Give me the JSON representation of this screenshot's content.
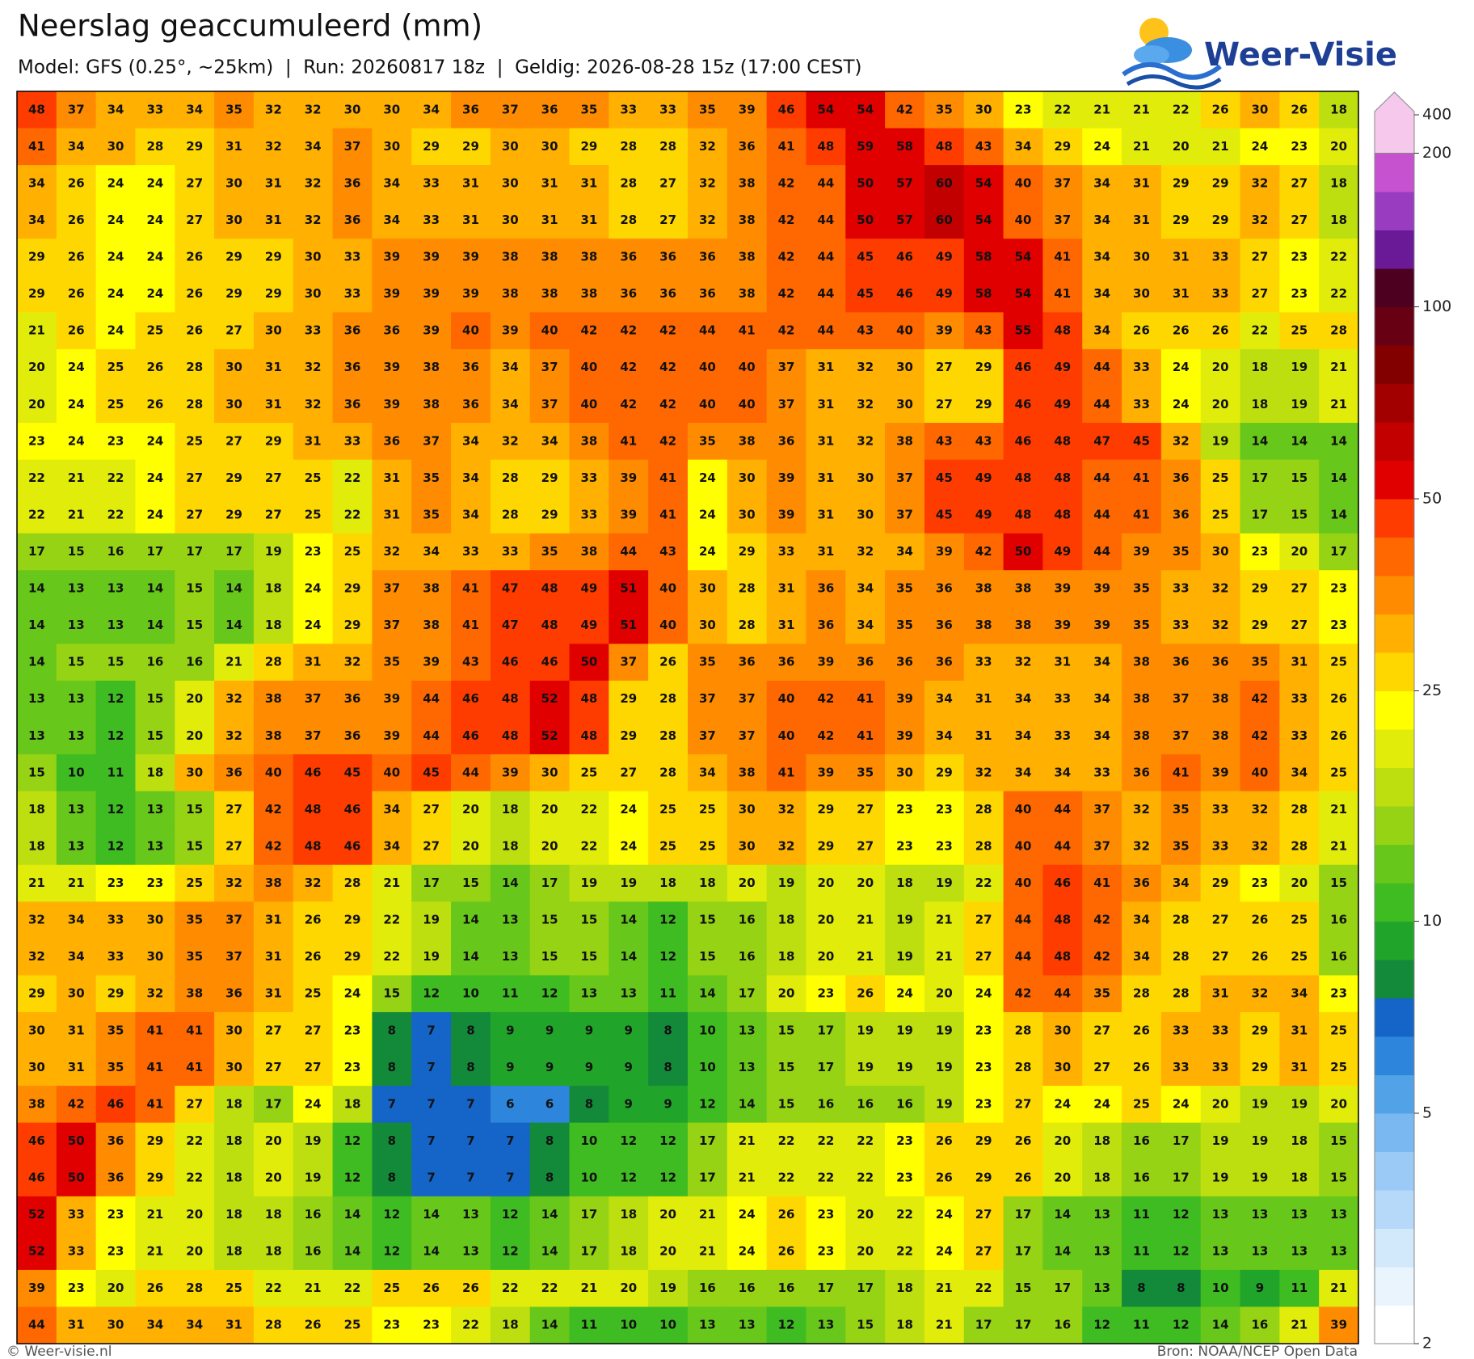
{
  "header": {
    "title": "Neerslag geaccumuleerd (mm)",
    "subtitle": "Model: GFS (0.25°, ~25km)  |  Run: 20260817 18z  |  Geldig: 2026-08-28 15z (17:00 CEST)"
  },
  "logo": "Weer-Visie",
  "map": {
    "values": [
      [
        48,
        37,
        34,
        33,
        34,
        35,
        32,
        32,
        30,
        30,
        34,
        36,
        37,
        36,
        35,
        33,
        33,
        35,
        39,
        46,
        54,
        54,
        42,
        35,
        30,
        23,
        22,
        21,
        21,
        22,
        26,
        30,
        26,
        18
      ],
      [
        41,
        34,
        30,
        28,
        29,
        31,
        32,
        34,
        37,
        30,
        29,
        29,
        30,
        30,
        29,
        28,
        28,
        32,
        36,
        41,
        48,
        59,
        58,
        48,
        43,
        34,
        29,
        24,
        21,
        20,
        21,
        24,
        23,
        20
      ],
      [
        34,
        26,
        24,
        24,
        27,
        30,
        31,
        32,
        36,
        34,
        33,
        31,
        30,
        31,
        31,
        28,
        27,
        32,
        38,
        42,
        44,
        50,
        57,
        60,
        54,
        40,
        37,
        34,
        31,
        29,
        29,
        32,
        27,
        18
      ],
      [
        34,
        26,
        24,
        24,
        27,
        30,
        31,
        32,
        36,
        34,
        33,
        31,
        30,
        31,
        31,
        28,
        27,
        32,
        38,
        42,
        44,
        50,
        57,
        60,
        54,
        40,
        37,
        34,
        31,
        29,
        29,
        32,
        27,
        18
      ],
      [
        29,
        26,
        24,
        24,
        26,
        29,
        29,
        30,
        33,
        39,
        39,
        39,
        38,
        38,
        38,
        36,
        36,
        36,
        38,
        42,
        44,
        45,
        46,
        49,
        58,
        54,
        41,
        34,
        30,
        31,
        33,
        27,
        23,
        22
      ],
      [
        29,
        26,
        24,
        24,
        26,
        29,
        29,
        30,
        33,
        39,
        39,
        39,
        38,
        38,
        38,
        36,
        36,
        36,
        38,
        42,
        44,
        45,
        46,
        49,
        58,
        54,
        41,
        34,
        30,
        31,
        33,
        27,
        23,
        22
      ],
      [
        21,
        26,
        24,
        25,
        26,
        27,
        30,
        33,
        36,
        36,
        39,
        40,
        39,
        40,
        42,
        42,
        42,
        44,
        41,
        42,
        44,
        43,
        40,
        39,
        43,
        55,
        48,
        34,
        26,
        26,
        26,
        22,
        25,
        28
      ],
      [
        20,
        24,
        25,
        26,
        28,
        30,
        31,
        32,
        36,
        39,
        38,
        36,
        34,
        37,
        40,
        42,
        42,
        40,
        40,
        37,
        31,
        32,
        30,
        27,
        29,
        46,
        49,
        44,
        33,
        24,
        20,
        18,
        19,
        21
      ],
      [
        20,
        24,
        25,
        26,
        28,
        30,
        31,
        32,
        36,
        39,
        38,
        36,
        34,
        37,
        40,
        42,
        42,
        40,
        40,
        37,
        31,
        32,
        30,
        27,
        29,
        46,
        49,
        44,
        33,
        24,
        20,
        18,
        19,
        21
      ],
      [
        23,
        24,
        23,
        24,
        25,
        27,
        29,
        31,
        33,
        36,
        37,
        34,
        32,
        34,
        38,
        41,
        42,
        35,
        38,
        36,
        31,
        32,
        38,
        43,
        43,
        46,
        48,
        47,
        45,
        32,
        19,
        14,
        14,
        14
      ],
      [
        22,
        21,
        22,
        24,
        27,
        29,
        27,
        25,
        22,
        31,
        35,
        34,
        28,
        29,
        33,
        39,
        41,
        24,
        30,
        39,
        31,
        30,
        37,
        45,
        49,
        48,
        48,
        44,
        41,
        36,
        25,
        17,
        15,
        14
      ],
      [
        22,
        21,
        22,
        24,
        27,
        29,
        27,
        25,
        22,
        31,
        35,
        34,
        28,
        29,
        33,
        39,
        41,
        24,
        30,
        39,
        31,
        30,
        37,
        45,
        49,
        48,
        48,
        44,
        41,
        36,
        25,
        17,
        15,
        14
      ],
      [
        17,
        15,
        16,
        17,
        17,
        17,
        19,
        23,
        25,
        32,
        34,
        33,
        33,
        35,
        38,
        44,
        43,
        24,
        29,
        33,
        31,
        32,
        34,
        39,
        42,
        50,
        49,
        44,
        39,
        35,
        30,
        23,
        20,
        17
      ],
      [
        14,
        13,
        13,
        14,
        15,
        14,
        18,
        24,
        29,
        37,
        38,
        41,
        47,
        48,
        49,
        51,
        40,
        30,
        28,
        31,
        36,
        34,
        35,
        36,
        38,
        38,
        39,
        39,
        35,
        33,
        32,
        29,
        27,
        23
      ],
      [
        14,
        13,
        13,
        14,
        15,
        14,
        18,
        24,
        29,
        37,
        38,
        41,
        47,
        48,
        49,
        51,
        40,
        30,
        28,
        31,
        36,
        34,
        35,
        36,
        38,
        38,
        39,
        39,
        35,
        33,
        32,
        29,
        27,
        23
      ],
      [
        14,
        15,
        15,
        16,
        16,
        21,
        28,
        31,
        32,
        35,
        39,
        43,
        46,
        46,
        50,
        37,
        26,
        35,
        36,
        36,
        39,
        36,
        36,
        36,
        33,
        32,
        31,
        34,
        38,
        36,
        36,
        35,
        31,
        25
      ],
      [
        13,
        13,
        12,
        15,
        20,
        32,
        38,
        37,
        36,
        39,
        44,
        46,
        48,
        52,
        48,
        29,
        28,
        37,
        37,
        40,
        42,
        41,
        39,
        34,
        31,
        34,
        33,
        34,
        38,
        37,
        38,
        42,
        33,
        26
      ],
      [
        13,
        13,
        12,
        15,
        20,
        32,
        38,
        37,
        36,
        39,
        44,
        46,
        48,
        52,
        48,
        29,
        28,
        37,
        37,
        40,
        42,
        41,
        39,
        34,
        31,
        34,
        33,
        34,
        38,
        37,
        38,
        42,
        33,
        26
      ],
      [
        15,
        10,
        11,
        18,
        30,
        36,
        40,
        46,
        45,
        40,
        45,
        44,
        39,
        30,
        25,
        27,
        28,
        34,
        38,
        41,
        39,
        35,
        30,
        29,
        32,
        34,
        34,
        33,
        36,
        41,
        39,
        40,
        34,
        25
      ],
      [
        18,
        13,
        12,
        13,
        15,
        27,
        42,
        48,
        46,
        34,
        27,
        20,
        18,
        20,
        22,
        24,
        25,
        25,
        30,
        32,
        29,
        27,
        23,
        23,
        28,
        40,
        44,
        37,
        32,
        35,
        33,
        32,
        28,
        21
      ],
      [
        18,
        13,
        12,
        13,
        15,
        27,
        42,
        48,
        46,
        34,
        27,
        20,
        18,
        20,
        22,
        24,
        25,
        25,
        30,
        32,
        29,
        27,
        23,
        23,
        28,
        40,
        44,
        37,
        32,
        35,
        33,
        32,
        28,
        21
      ],
      [
        21,
        21,
        23,
        23,
        25,
        32,
        38,
        32,
        28,
        21,
        17,
        15,
        14,
        17,
        19,
        19,
        18,
        18,
        20,
        19,
        20,
        20,
        18,
        19,
        22,
        40,
        46,
        41,
        36,
        34,
        29,
        23,
        20,
        15
      ],
      [
        32,
        34,
        33,
        30,
        35,
        37,
        31,
        26,
        29,
        22,
        19,
        14,
        13,
        15,
        15,
        14,
        12,
        15,
        16,
        18,
        20,
        21,
        19,
        21,
        27,
        44,
        48,
        42,
        34,
        28,
        27,
        26,
        25,
        16
      ],
      [
        32,
        34,
        33,
        30,
        35,
        37,
        31,
        26,
        29,
        22,
        19,
        14,
        13,
        15,
        15,
        14,
        12,
        15,
        16,
        18,
        20,
        21,
        19,
        21,
        27,
        44,
        48,
        42,
        34,
        28,
        27,
        26,
        25,
        16
      ],
      [
        29,
        30,
        29,
        32,
        38,
        36,
        31,
        25,
        24,
        15,
        12,
        10,
        11,
        12,
        13,
        13,
        11,
        14,
        17,
        20,
        23,
        26,
        24,
        20,
        24,
        42,
        44,
        35,
        28,
        28,
        31,
        32,
        34,
        23
      ],
      [
        30,
        31,
        35,
        41,
        41,
        30,
        27,
        27,
        23,
        8,
        7,
        8,
        9,
        9,
        9,
        9,
        8,
        10,
        13,
        15,
        17,
        19,
        19,
        19,
        23,
        28,
        30,
        27,
        26,
        33,
        33,
        29,
        31,
        25
      ],
      [
        30,
        31,
        35,
        41,
        41,
        30,
        27,
        27,
        23,
        8,
        7,
        8,
        9,
        9,
        9,
        9,
        8,
        10,
        13,
        15,
        17,
        19,
        19,
        19,
        23,
        28,
        30,
        27,
        26,
        33,
        33,
        29,
        31,
        25
      ],
      [
        38,
        42,
        46,
        41,
        27,
        18,
        17,
        24,
        18,
        7,
        7,
        7,
        6,
        6,
        8,
        9,
        9,
        12,
        14,
        15,
        16,
        16,
        16,
        19,
        23,
        27,
        24,
        24,
        25,
        24,
        20,
        19,
        19,
        20
      ],
      [
        46,
        50,
        36,
        29,
        22,
        18,
        20,
        19,
        12,
        8,
        7,
        7,
        7,
        8,
        10,
        12,
        12,
        17,
        21,
        22,
        22,
        22,
        23,
        26,
        29,
        26,
        20,
        18,
        16,
        17,
        19,
        19,
        18,
        15
      ],
      [
        46,
        50,
        36,
        29,
        22,
        18,
        20,
        19,
        12,
        8,
        7,
        7,
        7,
        8,
        10,
        12,
        12,
        17,
        21,
        22,
        22,
        22,
        23,
        26,
        29,
        26,
        20,
        18,
        16,
        17,
        19,
        19,
        18,
        15
      ],
      [
        52,
        33,
        23,
        21,
        20,
        18,
        18,
        16,
        14,
        12,
        14,
        13,
        12,
        14,
        17,
        18,
        20,
        21,
        24,
        26,
        23,
        20,
        22,
        24,
        27,
        17,
        14,
        13,
        11,
        12,
        13,
        13,
        13,
        13
      ],
      [
        52,
        33,
        23,
        21,
        20,
        18,
        18,
        16,
        14,
        12,
        14,
        13,
        12,
        14,
        17,
        18,
        20,
        21,
        24,
        26,
        23,
        20,
        22,
        24,
        27,
        17,
        14,
        13,
        11,
        12,
        13,
        13,
        13,
        13
      ],
      [
        39,
        23,
        20,
        26,
        28,
        25,
        22,
        21,
        22,
        25,
        26,
        26,
        22,
        22,
        21,
        20,
        19,
        16,
        16,
        16,
        17,
        17,
        18,
        21,
        22,
        15,
        17,
        13,
        8,
        8,
        10,
        9,
        11,
        21
      ],
      [
        44,
        31,
        30,
        34,
        34,
        31,
        28,
        26,
        25,
        23,
        23,
        22,
        18,
        14,
        11,
        10,
        10,
        13,
        13,
        12,
        13,
        15,
        18,
        21,
        17,
        17,
        16,
        12,
        11,
        12,
        14,
        16,
        21,
        39
      ]
    ]
  },
  "colorbar": {
    "levels": [
      2,
      2.5,
      3,
      3.5,
      4,
      4.5,
      5,
      6,
      7,
      8,
      9,
      10,
      12.5,
      15,
      17.5,
      20,
      22.5,
      25,
      30,
      35,
      40,
      45,
      50,
      60,
      70,
      80,
      90,
      100,
      125,
      150,
      175,
      200,
      400
    ],
    "colors": [
      "#ffffff",
      "#eaf4fd",
      "#d2e8fb",
      "#b6d9f9",
      "#9acaf5",
      "#79b8f0",
      "#52a2e8",
      "#2d86dc",
      "#1565c8",
      "#138a3a",
      "#21a42a",
      "#3fbc22",
      "#68c71b",
      "#95d314",
      "#bddf10",
      "#e1ec0b",
      "#ffff00",
      "#ffd700",
      "#ffb000",
      "#ff8c00",
      "#ff6800",
      "#ff3c00",
      "#e00000",
      "#c20000",
      "#a20000",
      "#830000",
      "#670012",
      "#4d0020",
      "#6b1a97",
      "#9a3cc0",
      "#c652d0",
      "#f5c8ec"
    ],
    "ticks": [
      2,
      5,
      10,
      25,
      50,
      100,
      200,
      400
    ]
  },
  "footer": {
    "left": "© Weer-visie.nl",
    "right": "Bron: NOAA/NCEP Open Data"
  }
}
